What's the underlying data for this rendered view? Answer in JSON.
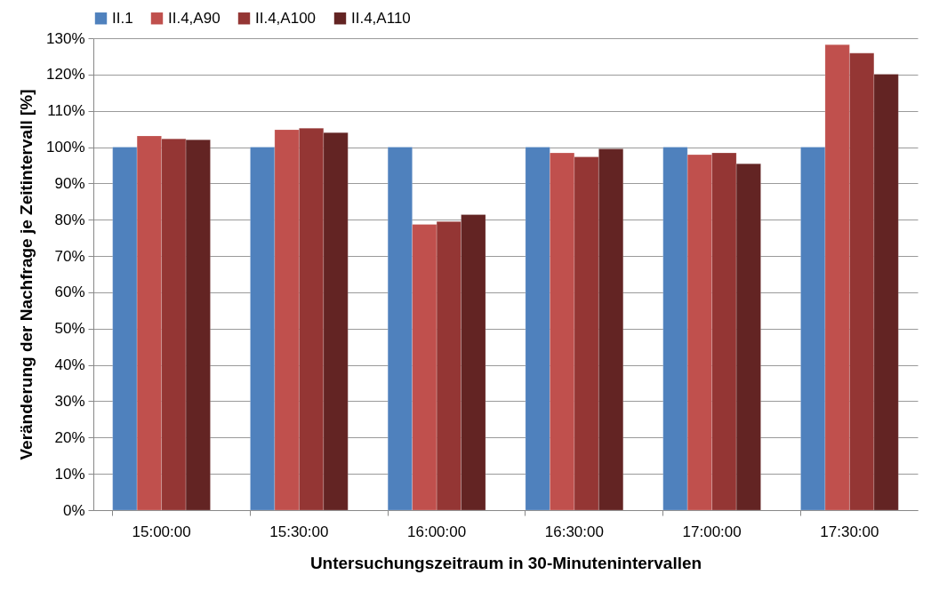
{
  "chart_data": {
    "type": "bar",
    "xlabel": "Untersuchungszeitraum in 30-Minutenintervallen",
    "ylabel": "Veränderung der Nachfrage je Zeitintervall  [%]",
    "categories": [
      "15:00:00",
      "15:30:00",
      "16:00:00",
      "16:30:00",
      "17:00:00",
      "17:30:00"
    ],
    "series": [
      {
        "name": "II.1",
        "color": "#4f81bd",
        "values": [
          100,
          100,
          100,
          100,
          100,
          100
        ]
      },
      {
        "name": "II.4,A90",
        "color": "#c0504d",
        "values": [
          103.1,
          104.8,
          78.7,
          98.4,
          97.9,
          128.2
        ]
      },
      {
        "name": "II.4,A100",
        "color": "#943634",
        "values": [
          102.3,
          105.2,
          79.5,
          97.3,
          98.4,
          125.9
        ]
      },
      {
        "name": "II.4,A110",
        "color": "#632423",
        "values": [
          102.0,
          104.0,
          81.4,
          99.5,
          95.4,
          120.1
        ]
      }
    ],
    "ylim": [
      0,
      130
    ],
    "yticks": [
      {
        "value": 0,
        "label": "0%"
      },
      {
        "value": 10,
        "label": "10%"
      },
      {
        "value": 20,
        "label": "20%"
      },
      {
        "value": 30,
        "label": "30%"
      },
      {
        "value": 40,
        "label": "40%"
      },
      {
        "value": 50,
        "label": "50%"
      },
      {
        "value": 60,
        "label": "60%"
      },
      {
        "value": 70,
        "label": "70%"
      },
      {
        "value": 80,
        "label": "80%"
      },
      {
        "value": 90,
        "label": "90%"
      },
      {
        "value": 100,
        "label": "100%"
      },
      {
        "value": 110,
        "label": "110%"
      },
      {
        "value": 120,
        "label": "120%"
      },
      {
        "value": 130,
        "label": "130%"
      }
    ],
    "grid": "y",
    "legend": "top"
  }
}
